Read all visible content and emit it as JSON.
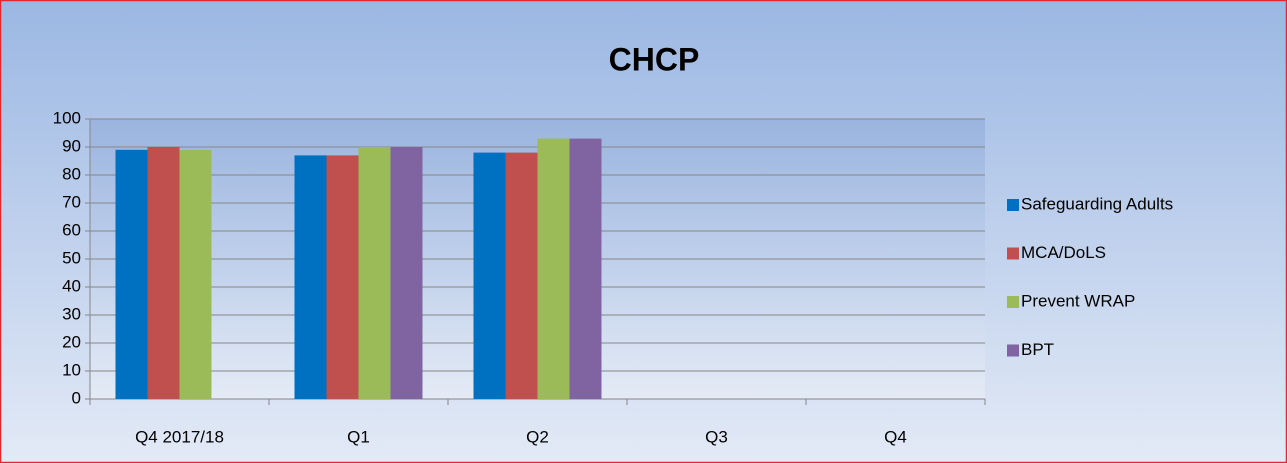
{
  "chart_data": {
    "type": "bar",
    "title": "CHCP",
    "categories": [
      "Q4 2017/18",
      "Q1",
      "Q2",
      "Q3",
      "Q4"
    ],
    "series": [
      {
        "name": "Safeguarding Adults",
        "color": "#0070c0",
        "values": [
          89,
          87,
          88,
          null,
          null
        ]
      },
      {
        "name": "MCA/DoLS",
        "color": "#c0504d",
        "values": [
          90,
          87,
          88,
          null,
          null
        ]
      },
      {
        "name": "Prevent WRAP",
        "color": "#9bbb59",
        "values": [
          89,
          90,
          93,
          null,
          null
        ]
      },
      {
        "name": "BPT",
        "color": "#8064a2",
        "values": [
          null,
          90,
          93,
          null,
          null
        ]
      }
    ],
    "ylim": [
      0,
      100
    ],
    "yticks": [
      0,
      10,
      20,
      30,
      40,
      50,
      60,
      70,
      80,
      90,
      100
    ],
    "grid": true,
    "legend": "right"
  }
}
